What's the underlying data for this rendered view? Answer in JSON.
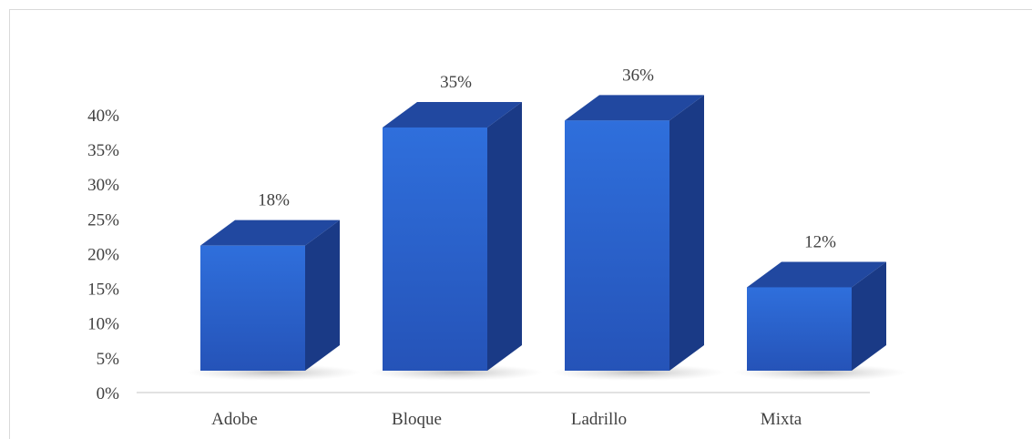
{
  "chart_data": {
    "type": "bar",
    "style": "3d-column",
    "categories": [
      "Adobe",
      "Bloque",
      "Ladrillo",
      "Mixta"
    ],
    "values": [
      18,
      35,
      36,
      12
    ],
    "value_unit": "%",
    "data_labels": [
      "18%",
      "35%",
      "36%",
      "12%"
    ],
    "title": "",
    "xlabel": "",
    "ylabel": "",
    "ylim": [
      0,
      40
    ],
    "yticks": [
      "0%",
      "5%",
      "10%",
      "15%",
      "20%",
      "25%",
      "30%",
      "35%",
      "40%"
    ],
    "grid": false,
    "legend": "none",
    "colors": {
      "front_top": "#2f6fdc",
      "front_bottom": "#2553b8",
      "top_face": "#2148a0",
      "side_face": "#1a3a86",
      "axis": "#d9d9d9",
      "text": "#404040"
    }
  }
}
